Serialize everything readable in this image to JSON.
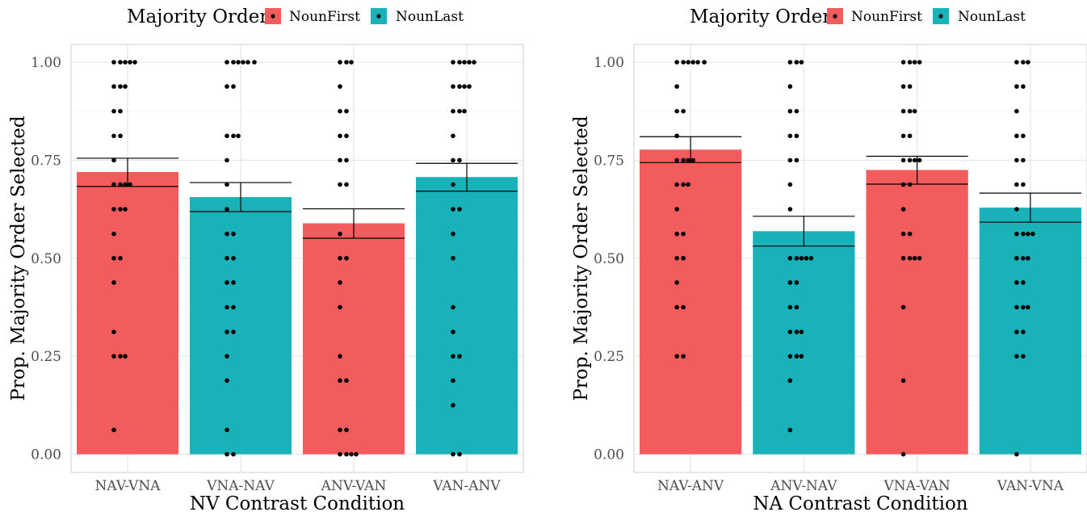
{
  "legend": {
    "title": "Majority Order",
    "items": [
      {
        "label": "NounFirst",
        "color": "#F25C5C"
      },
      {
        "label": "NounLast",
        "color": "#19B2B8"
      }
    ]
  },
  "chart_data": [
    {
      "type": "bar",
      "xlabel": "NV Contrast Condition",
      "ylabel": "Prop. Majority Order Selected",
      "ylim": [
        0,
        1
      ],
      "yticks": [
        "0.00",
        "0.25",
        "0.50",
        "0.75",
        "1.00"
      ],
      "grid": true,
      "legend_position": "top",
      "categories": [
        "NAV-VNA",
        "VNA-NAV",
        "ANV-VAN",
        "VAN-ANV"
      ],
      "series": [
        {
          "name": "NounFirst",
          "values": [
            0.72,
            null,
            0.589,
            null
          ]
        },
        {
          "name": "NounLast",
          "values": [
            null,
            0.656,
            null,
            0.707
          ]
        }
      ],
      "error_bars": [
        [
          0.683,
          0.755
        ],
        [
          0.619,
          0.693
        ],
        [
          0.551,
          0.626
        ],
        [
          0.671,
          0.742
        ]
      ],
      "points": [
        [
          1,
          1,
          1,
          1,
          1,
          0.938,
          0.938,
          0.938,
          0.875,
          0.875,
          0.812,
          0.812,
          0.75,
          0.688,
          0.688,
          0.688,
          0.688,
          0.625,
          0.625,
          0.625,
          0.562,
          0.5,
          0.5,
          0.438,
          0.312,
          0.25,
          0.25,
          0.25,
          0.062
        ],
        [
          1,
          1,
          1,
          1,
          1,
          1,
          0.938,
          0.938,
          0.812,
          0.812,
          0.812,
          0.75,
          0.688,
          0.625,
          0.562,
          0.562,
          0.5,
          0.5,
          0.438,
          0.438,
          0.375,
          0.375,
          0.312,
          0.312,
          0.25,
          0.188,
          0.062,
          0,
          0
        ],
        [
          1,
          1,
          1,
          0.938,
          0.875,
          0.875,
          0.812,
          0.812,
          0.75,
          0.75,
          0.688,
          0.688,
          0.562,
          0.5,
          0.5,
          0.438,
          0.375,
          0.25,
          0.188,
          0.188,
          0.062,
          0.062,
          0,
          0,
          0,
          0
        ],
        [
          1,
          1,
          1,
          1,
          1,
          0.938,
          0.938,
          0.938,
          0.938,
          0.875,
          0.875,
          0.875,
          0.812,
          0.75,
          0.75,
          0.688,
          0.625,
          0.625,
          0.562,
          0.5,
          0.375,
          0.312,
          0.25,
          0.25,
          0.188,
          0.125,
          0,
          0
        ]
      ]
    },
    {
      "type": "bar",
      "xlabel": "NA Contrast Condition",
      "ylabel": "Prop. Majority Order Selected",
      "ylim": [
        0,
        1
      ],
      "yticks": [
        "0.00",
        "0.25",
        "0.50",
        "0.75",
        "1.00"
      ],
      "grid": true,
      "legend_position": "top",
      "categories": [
        "NAV-ANV",
        "ANV-NAV",
        "VNA-VAN",
        "VAN-VNA"
      ],
      "series": [
        {
          "name": "NounFirst",
          "values": [
            0.777,
            null,
            0.725,
            null
          ]
        },
        {
          "name": "NounLast",
          "values": [
            null,
            0.569,
            null,
            0.629
          ]
        }
      ],
      "error_bars": [
        [
          0.744,
          0.81
        ],
        [
          0.531,
          0.607
        ],
        [
          0.689,
          0.76
        ],
        [
          0.592,
          0.666
        ]
      ],
      "points": [
        [
          1,
          1,
          1,
          1,
          1,
          1,
          0.938,
          0.875,
          0.875,
          0.812,
          0.75,
          0.75,
          0.75,
          0.75,
          0.688,
          0.688,
          0.688,
          0.625,
          0.562,
          0.562,
          0.5,
          0.5,
          0.438,
          0.375,
          0.375,
          0.25,
          0.25
        ],
        [
          1,
          1,
          1,
          0.938,
          0.875,
          0.875,
          0.812,
          0.812,
          0.75,
          0.75,
          0.688,
          0.625,
          0.5,
          0.5,
          0.5,
          0.5,
          0.5,
          0.438,
          0.438,
          0.375,
          0.375,
          0.312,
          0.312,
          0.312,
          0.25,
          0.25,
          0.25,
          0.188,
          0.062
        ],
        [
          1,
          1,
          1,
          1,
          0.938,
          0.938,
          0.875,
          0.875,
          0.875,
          0.812,
          0.812,
          0.75,
          0.75,
          0.75,
          0.75,
          0.688,
          0.688,
          0.625,
          0.562,
          0.562,
          0.5,
          0.5,
          0.5,
          0.5,
          0.375,
          0.188,
          0
        ],
        [
          1,
          1,
          1,
          0.938,
          0.938,
          0.875,
          0.812,
          0.812,
          0.75,
          0.75,
          0.688,
          0.688,
          0.625,
          0.562,
          0.562,
          0.562,
          0.562,
          0.5,
          0.5,
          0.5,
          0.438,
          0.438,
          0.375,
          0.375,
          0.375,
          0.312,
          0.312,
          0.25,
          0.25,
          0
        ]
      ]
    }
  ]
}
